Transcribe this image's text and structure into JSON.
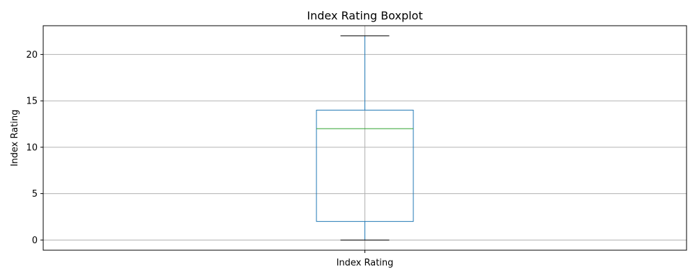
{
  "chart_data": {
    "type": "boxplot",
    "title": "Index Rating Boxplot",
    "xlabel": "",
    "ylabel": "Index Rating",
    "categories": [
      "Index Rating"
    ],
    "boxes": [
      {
        "name": "Index Rating",
        "whisker_low": 0,
        "q1": 2,
        "median": 12,
        "q3": 14,
        "whisker_high": 22
      }
    ],
    "ylim": [
      -1.1,
      23.1
    ],
    "yticks": [
      0,
      5,
      10,
      15,
      20
    ],
    "grid": true,
    "colors": {
      "box": "#1f77b4",
      "whisker": "#1f77b4",
      "cap": "#000000",
      "median": "#2ca02c",
      "grid": "#b0b0b0",
      "axes": "#000000"
    }
  }
}
